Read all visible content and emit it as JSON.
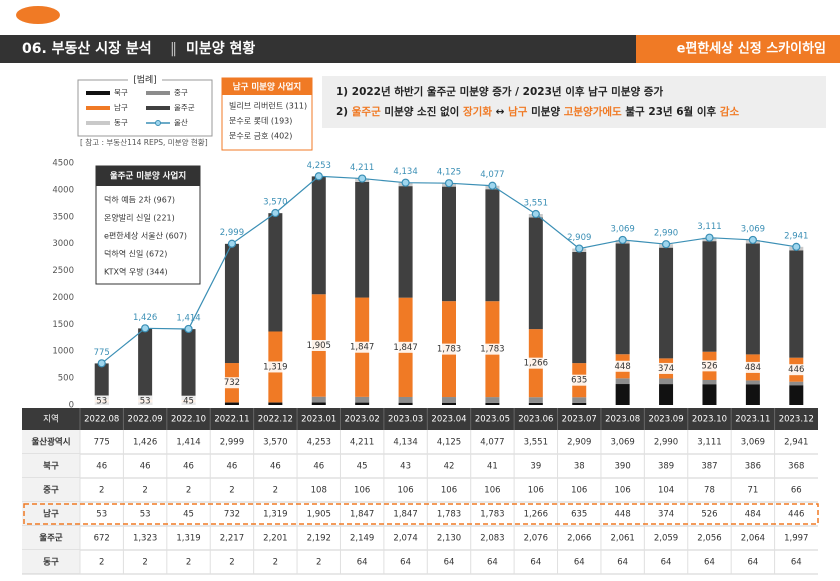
{
  "header": {
    "section": "06. 부동산 시장 분석",
    "separator": "‖",
    "page": "미분양 현황",
    "brand": "e편한세상 신정 스카이하임"
  },
  "legend_title": "[범례]",
  "source": "[ 참고 : 부동산114 REPS, 미분양 현황]",
  "namgu_box": {
    "title": "남구 미분양 사업지",
    "items": [
      "빌리브 리버런트 (311)",
      "문수로 롯데 (193)",
      "문수로 금호 (402)"
    ]
  },
  "uljugun_box": {
    "title": "울주군 미분양 사업지",
    "items": [
      "덕하 예듬 2차 (967)",
      "온양발리 신일 (221)",
      "e편한세상 서울산 (607)",
      "덕하역 신일 (672)",
      "KTX역 우방 (344)"
    ]
  },
  "notes": [
    [
      {
        "text": "1) 2022년 하반기 울주군 미분양 증가 / 2023년 이후 남구 미분양 증가"
      }
    ],
    [
      {
        "text": "2) "
      },
      {
        "text": "울주군",
        "hl": true
      },
      {
        "text": " 미분양 소진 없이 "
      },
      {
        "text": "장기화",
        "hl": true
      },
      {
        "text": " ↔ "
      },
      {
        "text": "남구",
        "hl": true
      },
      {
        "text": " 미분양 "
      },
      {
        "text": "고분양가에도",
        "hl": true
      },
      {
        "text": " 불구 23년 6월 이후 "
      },
      {
        "text": "감소",
        "hl": true
      }
    ]
  ],
  "chart_data": {
    "type": "bar",
    "stacked": true,
    "categories": [
      "2022.08",
      "2022.09",
      "2022.10",
      "2022.11",
      "2022.12",
      "2023.01",
      "2023.02",
      "2023.03",
      "2023.04",
      "2023.05",
      "2023.06",
      "2023.07",
      "2023.08",
      "2023.09",
      "2023.10",
      "2023.11",
      "2023.12"
    ],
    "ylim": [
      0,
      4500
    ],
    "yticks": [
      0,
      500,
      1000,
      1500,
      2000,
      2500,
      3000,
      3500,
      4000,
      4500
    ],
    "grid": false,
    "series": [
      {
        "name": "북구",
        "color": "#111111",
        "values": [
          46,
          46,
          46,
          46,
          46,
          46,
          45,
          43,
          42,
          41,
          39,
          38,
          390,
          389,
          387,
          386,
          368
        ]
      },
      {
        "name": "중구",
        "color": "#8c8c8c",
        "values": [
          2,
          2,
          2,
          2,
          2,
          108,
          106,
          106,
          106,
          106,
          106,
          106,
          106,
          104,
          78,
          71,
          66
        ]
      },
      {
        "name": "남구",
        "color": "#f07a25",
        "values": [
          53,
          53,
          45,
          732,
          1319,
          1905,
          1847,
          1847,
          1783,
          1783,
          1266,
          635,
          448,
          374,
          526,
          484,
          446
        ],
        "value_labels": [
          "53",
          "53",
          "45",
          "732",
          "1,319",
          "1,905",
          "1,847",
          "1,847",
          "1,783",
          "1,783",
          "1,266",
          "635",
          "448",
          "374",
          "526",
          "484",
          "446"
        ]
      },
      {
        "name": "울주군",
        "color": "#404040",
        "values": [
          672,
          1323,
          1319,
          2217,
          2201,
          2192,
          2149,
          2074,
          2130,
          2083,
          2076,
          2066,
          2061,
          2059,
          2056,
          2064,
          1997
        ]
      },
      {
        "name": "동구",
        "color": "#c9c9c9",
        "values": [
          2,
          2,
          2,
          2,
          2,
          2,
          64,
          64,
          64,
          64,
          64,
          64,
          64,
          64,
          64,
          64,
          64
        ]
      },
      {
        "name": "울산",
        "type": "line",
        "color": "#3b8fb5",
        "values": [
          775,
          1426,
          1414,
          2999,
          3570,
          4253,
          4211,
          4134,
          4125,
          4077,
          3551,
          2909,
          3069,
          2990,
          3111,
          3069,
          2941
        ],
        "value_labels": [
          "775",
          "1,426",
          "1,414",
          "2,999",
          "3,570",
          "4,253",
          "4,211",
          "4,134",
          "4,125",
          "4,077",
          "3,551",
          "2,909",
          "3,069",
          "2,990",
          "3,111",
          "3,069",
          "2,941"
        ]
      }
    ]
  },
  "table": {
    "corner": "지역",
    "highlight_row": 3,
    "rows": [
      {
        "name": "울산광역시",
        "cells": [
          "775",
          "1,426",
          "1,414",
          "2,999",
          "3,570",
          "4,253",
          "4,211",
          "4,134",
          "4,125",
          "4,077",
          "3,551",
          "2,909",
          "3,069",
          "2,990",
          "3,111",
          "3,069",
          "2,941"
        ]
      },
      {
        "name": "북구",
        "cells": [
          "46",
          "46",
          "46",
          "46",
          "46",
          "46",
          "45",
          "43",
          "42",
          "41",
          "39",
          "38",
          "390",
          "389",
          "387",
          "386",
          "368"
        ]
      },
      {
        "name": "중구",
        "cells": [
          "2",
          "2",
          "2",
          "2",
          "2",
          "108",
          "106",
          "106",
          "106",
          "106",
          "106",
          "106",
          "106",
          "104",
          "78",
          "71",
          "66"
        ]
      },
      {
        "name": "남구",
        "cells": [
          "53",
          "53",
          "45",
          "732",
          "1,319",
          "1,905",
          "1,847",
          "1,847",
          "1,783",
          "1,783",
          "1,266",
          "635",
          "448",
          "374",
          "526",
          "484",
          "446"
        ]
      },
      {
        "name": "울주군",
        "cells": [
          "672",
          "1,323",
          "1,319",
          "2,217",
          "2,201",
          "2,192",
          "2,149",
          "2,074",
          "2,130",
          "2,083",
          "2,076",
          "2,066",
          "2,061",
          "2,059",
          "2,056",
          "2,064",
          "1,997"
        ]
      },
      {
        "name": "동구",
        "cells": [
          "2",
          "2",
          "2",
          "2",
          "2",
          "2",
          "64",
          "64",
          "64",
          "64",
          "64",
          "64",
          "64",
          "64",
          "64",
          "64",
          "64"
        ]
      }
    ]
  }
}
